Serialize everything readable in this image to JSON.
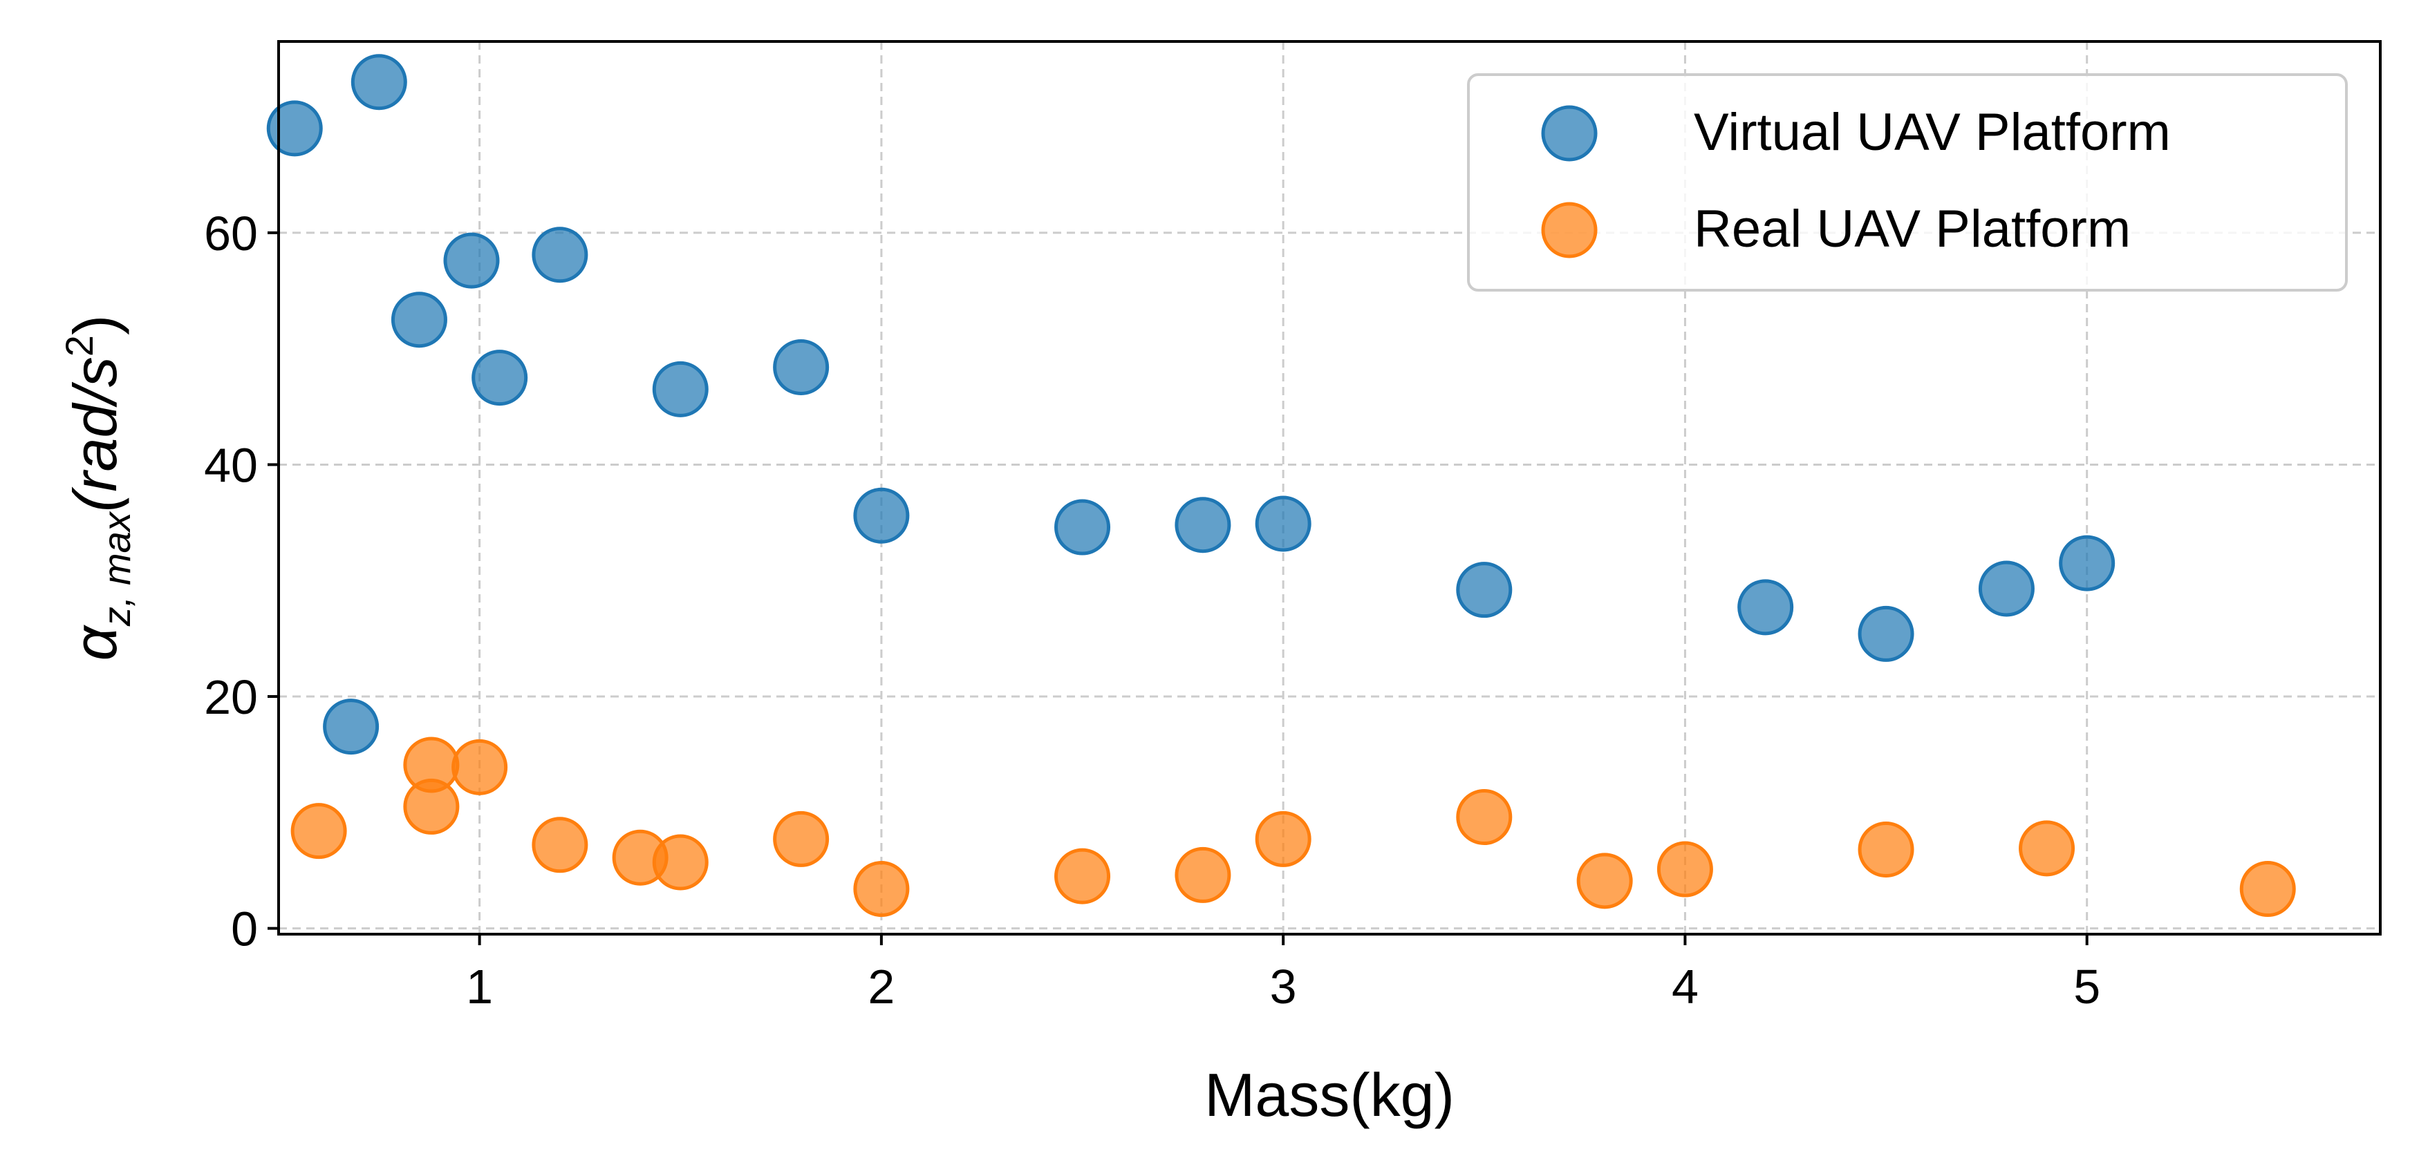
{
  "chart_data": {
    "type": "scatter",
    "xlabel": "Mass(kg)",
    "ylabel": {
      "symbol": "α",
      "subscript": "z, max",
      "units": "(rad/s",
      "power": "2",
      "close": ")"
    },
    "xlim": [
      0.5,
      5.73
    ],
    "ylim": [
      -0.5,
      76.5
    ],
    "xticks": [
      1,
      2,
      3,
      4,
      5
    ],
    "yticks": [
      0,
      20,
      40,
      60
    ],
    "grid": true,
    "grid_style": "dashed",
    "legend_position": "top-right",
    "series": [
      {
        "name": "Virtual UAV Platform",
        "color": "#1f77b4",
        "points": [
          [
            0.54,
            69.0
          ],
          [
            0.75,
            73.0
          ],
          [
            0.85,
            52.5
          ],
          [
            0.98,
            57.6
          ],
          [
            1.05,
            47.5
          ],
          [
            1.2,
            58.1
          ],
          [
            1.5,
            46.5
          ],
          [
            1.8,
            48.4
          ],
          [
            2.0,
            35.6
          ],
          [
            2.5,
            34.6
          ],
          [
            2.8,
            34.8
          ],
          [
            3.0,
            34.9
          ],
          [
            3.5,
            29.2
          ],
          [
            4.2,
            27.7
          ],
          [
            4.5,
            25.4
          ],
          [
            4.8,
            29.3
          ],
          [
            5.0,
            31.5
          ],
          [
            0.68,
            17.4
          ]
        ]
      },
      {
        "name": "Real UAV Platform",
        "color": "#ff7f0e",
        "points": [
          [
            0.6,
            8.4
          ],
          [
            0.88,
            14.1
          ],
          [
            0.88,
            10.5
          ],
          [
            1.0,
            13.9
          ],
          [
            1.2,
            7.2
          ],
          [
            1.4,
            6.1
          ],
          [
            1.5,
            5.7
          ],
          [
            1.8,
            7.7
          ],
          [
            2.0,
            3.4
          ],
          [
            2.5,
            4.5
          ],
          [
            2.8,
            4.6
          ],
          [
            3.0,
            7.7
          ],
          [
            3.5,
            9.6
          ],
          [
            3.8,
            4.1
          ],
          [
            4.0,
            5.1
          ],
          [
            4.5,
            6.8
          ],
          [
            4.9,
            6.9
          ],
          [
            5.45,
            3.4
          ]
        ]
      }
    ]
  }
}
